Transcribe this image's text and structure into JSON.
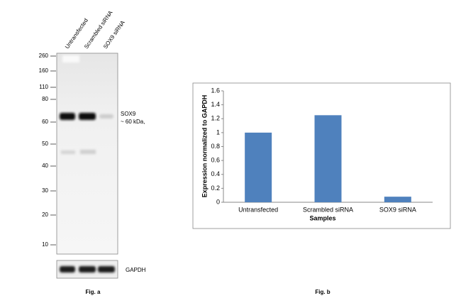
{
  "blot": {
    "lanes": [
      "Untransfected",
      "Scrambled siRNA",
      "SOX9 siRNA"
    ],
    "markers": [
      "260",
      "160",
      "110",
      "80",
      "60",
      "50",
      "40",
      "30",
      "20",
      "10"
    ],
    "band_label": "SOX9",
    "band_size": "~ 60 kDa,",
    "control_label": "GAPDH",
    "caption": "Fig. a"
  },
  "chart_data": {
    "type": "bar",
    "categories": [
      "Untransfected",
      "Scrambled siRNA",
      "SOX9 siRNA"
    ],
    "values": [
      1,
      1.25,
      0.08
    ],
    "color": "#4f81bd",
    "xlabel": "Samples",
    "ylabel": "Expression normalized to GAPDH",
    "ylim": [
      0,
      1.6
    ],
    "yticks": [
      0,
      0.2,
      0.4,
      0.6,
      0.8,
      1,
      1.2,
      1.4,
      1.6
    ],
    "grid": false,
    "caption": "Fig. b"
  }
}
